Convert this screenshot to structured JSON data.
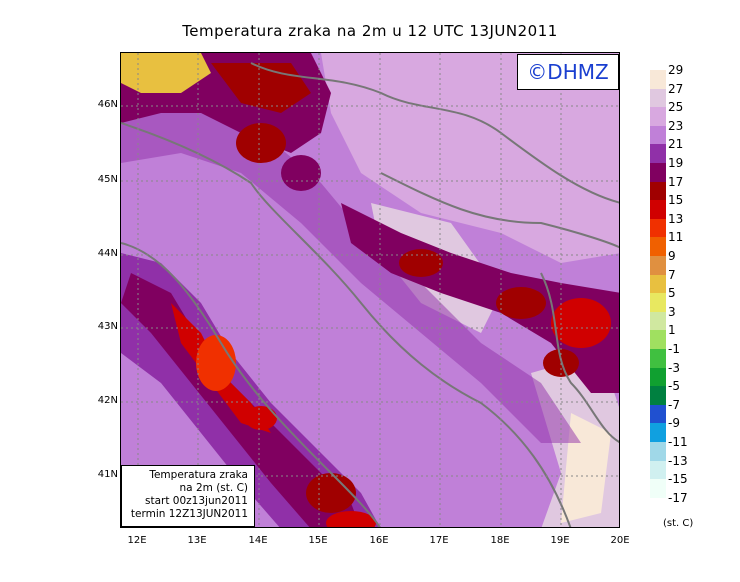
{
  "title": "Temperatura zraka na 2m u 12 UTC 13JUN2011",
  "logo_text": "©DHMZ",
  "info": {
    "line1": "Temperatura zraka",
    "line2": "na 2m (st. C)",
    "line3": "start 00z13jun2011",
    "line4": "termin 12Z13JUN2011"
  },
  "lat_ticks": [
    "46N",
    "45N",
    "44N",
    "43N",
    "42N",
    "41N"
  ],
  "lon_ticks": [
    "12E",
    "13E",
    "14E",
    "15E",
    "16E",
    "17E",
    "18E",
    "19E",
    "20E"
  ],
  "legend": {
    "labels": [
      "29",
      "27",
      "25",
      "23",
      "21",
      "19",
      "17",
      "15",
      "13",
      "11",
      "9",
      "7",
      "5",
      "3",
      "1",
      "-1",
      "-3",
      "-5",
      "-7",
      "-9",
      "-11",
      "-13",
      "-15",
      "-17"
    ],
    "colors": [
      "#f8e8d8",
      "#e0c8e0",
      "#d8a8e0",
      "#c080d8",
      "#9030a8",
      "#800060",
      "#a00000",
      "#d00000",
      "#f03000",
      "#f06000",
      "#e09040",
      "#e8c040",
      "#e8e860",
      "#d0e8a0",
      "#a0e060",
      "#40c040",
      "#10a030",
      "#008040",
      "#2050d0",
      "#10a0e0",
      "#a0d8e8",
      "#d0f0f0",
      "#f0fff8"
    ],
    "units": "(st. C)"
  }
}
